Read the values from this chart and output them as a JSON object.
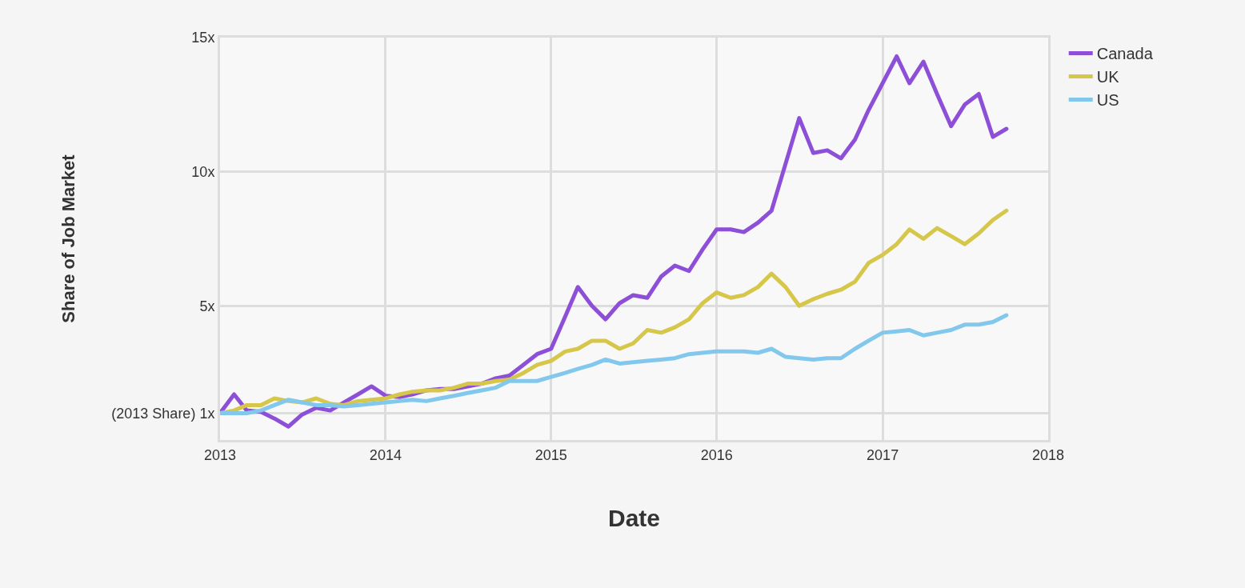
{
  "chart_data": {
    "type": "line",
    "xlabel": "Date",
    "ylabel": "Share of Job Market",
    "x": [
      "2013-01",
      "2013-02",
      "2013-03",
      "2013-04",
      "2013-05",
      "2013-06",
      "2013-07",
      "2013-08",
      "2013-09",
      "2013-10",
      "2013-11",
      "2013-12",
      "2014-01",
      "2014-02",
      "2014-03",
      "2014-04",
      "2014-05",
      "2014-06",
      "2014-07",
      "2014-08",
      "2014-09",
      "2014-10",
      "2014-11",
      "2014-12",
      "2015-01",
      "2015-02",
      "2015-03",
      "2015-04",
      "2015-05",
      "2015-06",
      "2015-07",
      "2015-08",
      "2015-09",
      "2015-10",
      "2015-11",
      "2015-12",
      "2016-01",
      "2016-02",
      "2016-03",
      "2016-04",
      "2016-05",
      "2016-06",
      "2016-07",
      "2016-08",
      "2016-09",
      "2016-10",
      "2016-11",
      "2016-12",
      "2017-01",
      "2017-02",
      "2017-03",
      "2017-04",
      "2017-05",
      "2017-06",
      "2017-07",
      "2017-08",
      "2017-09",
      "2017-10"
    ],
    "series": [
      {
        "name": "Canada",
        "color": "#8e4fd8",
        "values": [
          1.0,
          1.7,
          1.1,
          1.05,
          0.8,
          0.5,
          0.95,
          1.2,
          1.1,
          1.4,
          1.7,
          2.0,
          1.65,
          1.6,
          1.7,
          1.85,
          1.9,
          1.9,
          2.0,
          2.1,
          2.3,
          2.4,
          2.8,
          3.2,
          3.4,
          4.6,
          5.7,
          5.0,
          4.5,
          5.1,
          5.4,
          5.3,
          6.1,
          6.5,
          6.3,
          7.1,
          7.85,
          7.85,
          7.75,
          8.1,
          8.55,
          10.3,
          12.0,
          10.7,
          10.8,
          10.5,
          11.2,
          12.3,
          13.3,
          14.3,
          13.3,
          14.1,
          12.9,
          11.7,
          12.5,
          12.9,
          11.3,
          11.6
        ]
      },
      {
        "name": "UK",
        "color": "#d6c64a",
        "values": [
          1.0,
          1.1,
          1.3,
          1.3,
          1.55,
          1.45,
          1.4,
          1.55,
          1.35,
          1.3,
          1.45,
          1.5,
          1.55,
          1.7,
          1.8,
          1.85,
          1.85,
          1.95,
          2.1,
          2.1,
          2.2,
          2.25,
          2.5,
          2.8,
          2.95,
          3.3,
          3.4,
          3.7,
          3.7,
          3.4,
          3.6,
          4.1,
          4.0,
          4.2,
          4.5,
          5.1,
          5.5,
          5.3,
          5.4,
          5.7,
          6.2,
          5.7,
          5.0,
          5.25,
          5.45,
          5.6,
          5.9,
          6.6,
          6.9,
          7.3,
          7.85,
          7.5,
          7.9,
          7.6,
          7.3,
          7.7,
          8.2,
          8.55
        ]
      },
      {
        "name": "US",
        "color": "#82c8ec",
        "values": [
          1.0,
          1.0,
          1.0,
          1.1,
          1.3,
          1.5,
          1.4,
          1.3,
          1.3,
          1.25,
          1.3,
          1.35,
          1.4,
          1.45,
          1.5,
          1.45,
          1.55,
          1.65,
          1.75,
          1.85,
          1.95,
          2.2,
          2.2,
          2.2,
          2.35,
          2.5,
          2.65,
          2.8,
          3.0,
          2.85,
          2.9,
          2.95,
          3.0,
          3.05,
          3.2,
          3.25,
          3.3,
          3.3,
          3.3,
          3.25,
          3.4,
          3.1,
          3.05,
          3.0,
          3.05,
          3.05,
          3.4,
          3.7,
          4.0,
          4.05,
          4.1,
          3.9,
          4.0,
          4.1,
          4.3,
          4.3,
          4.4,
          4.65
        ]
      }
    ],
    "xlim": [
      "2013-01",
      "2018-01"
    ],
    "xticks": [
      {
        "value": "2013-01",
        "label": "2013"
      },
      {
        "value": "2014-01",
        "label": "2014"
      },
      {
        "value": "2015-01",
        "label": "2015"
      },
      {
        "value": "2016-01",
        "label": "2016"
      },
      {
        "value": "2017-01",
        "label": "2017"
      },
      {
        "value": "2018-01",
        "label": "2018"
      }
    ],
    "ylim": [
      0,
      15
    ],
    "yticks": [
      {
        "value": 1,
        "label": "(2013 Share) 1x"
      },
      {
        "value": 5,
        "label": "5x"
      },
      {
        "value": 10,
        "label": "10x"
      },
      {
        "value": 15,
        "label": "15x"
      }
    ],
    "grid": true,
    "legend": "top right",
    "marker": "none",
    "line_style": "solid"
  }
}
